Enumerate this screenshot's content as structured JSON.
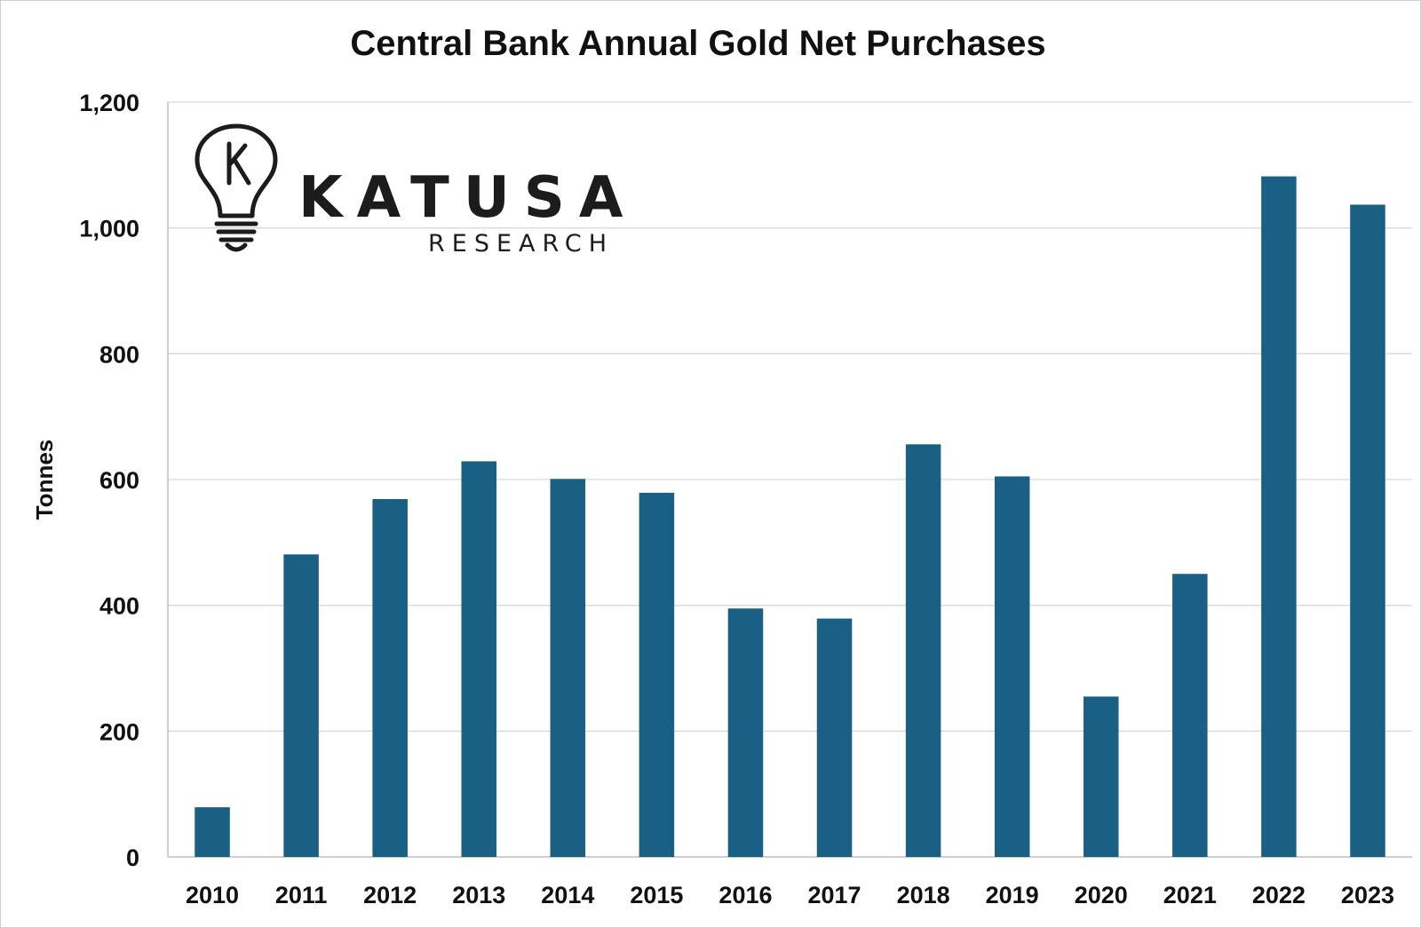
{
  "logo": {
    "name": "KATUSA",
    "sub": "RESEARCH",
    "initial": "K"
  },
  "colors": {
    "bar": "#1a6085",
    "grid": "#d9d9d9",
    "text": "#111111"
  },
  "chart_data": {
    "type": "bar",
    "title": "Central Bank Annual Gold Net Purchases",
    "xlabel": "",
    "ylabel": "Tonnes",
    "ylim": [
      0,
      1200
    ],
    "yticks": [
      "0",
      "200",
      "400",
      "600",
      "800",
      "1,000",
      "1,200"
    ],
    "grid": true,
    "categories": [
      "2010",
      "2011",
      "2012",
      "2013",
      "2014",
      "2015",
      "2016",
      "2017",
      "2018",
      "2019",
      "2020",
      "2021",
      "2022",
      "2023"
    ],
    "values": [
      79,
      481,
      569,
      629,
      601,
      579,
      395,
      379,
      656,
      605,
      255,
      450,
      1082,
      1037
    ]
  }
}
